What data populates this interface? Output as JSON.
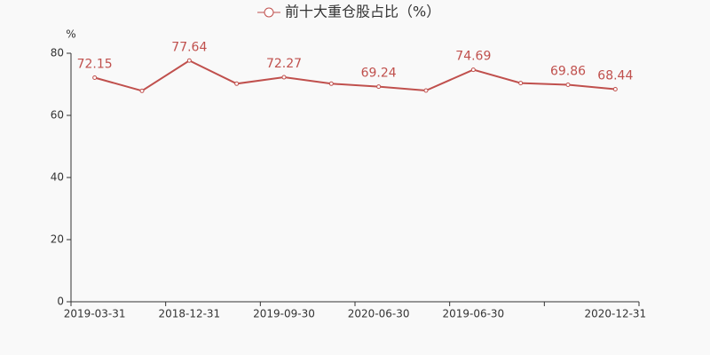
{
  "chart_data": {
    "type": "line",
    "y_label": "%",
    "categories": [
      "2019-03-31",
      null,
      "2018-12-31",
      null,
      "2019-09-30",
      null,
      "2020-06-30",
      null,
      "2019-06-30",
      null,
      null,
      "2020-12-31"
    ],
    "series": [
      {
        "name": "前十大重仓股占比（%）",
        "color": "#c0504d",
        "values": [
          72.15,
          67.9,
          77.64,
          70.2,
          72.27,
          70.2,
          69.24,
          68.0,
          74.69,
          70.4,
          69.86,
          68.44
        ],
        "value_labels": [
          "72.15",
          null,
          "77.64",
          null,
          "72.27",
          null,
          "69.24",
          null,
          "74.69",
          null,
          "69.86",
          "68.44"
        ]
      }
    ],
    "ylim": [
      0,
      80
    ],
    "yticks": [
      0,
      20,
      40,
      60,
      80
    ],
    "legend": "top"
  }
}
